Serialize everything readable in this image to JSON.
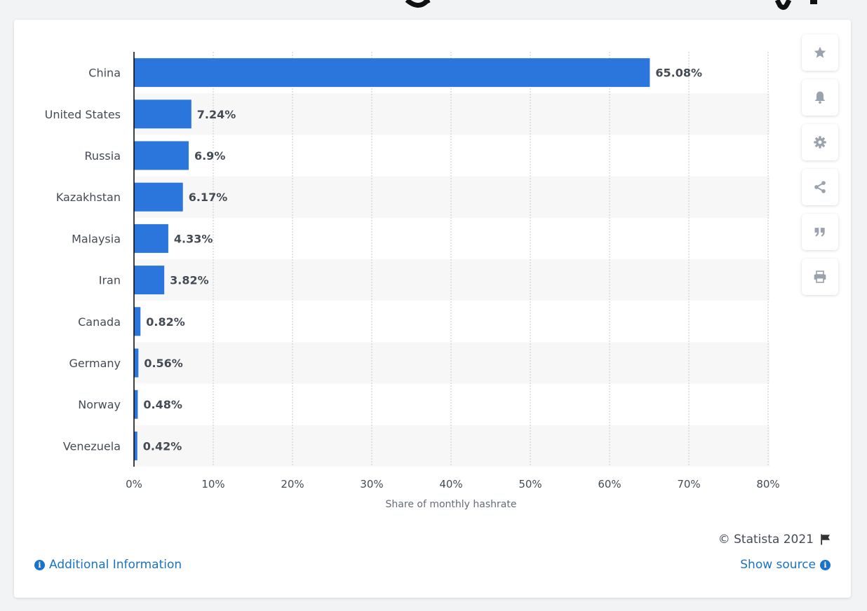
{
  "footer": {
    "copyright": "© Statista 2021",
    "additional_info": "Additional Information",
    "show_source": "Show source"
  },
  "actions": [
    {
      "name": "star-icon"
    },
    {
      "name": "bell-icon"
    },
    {
      "name": "gear-icon"
    },
    {
      "name": "share-icon"
    },
    {
      "name": "quote-icon"
    },
    {
      "name": "print-icon"
    }
  ],
  "colors": {
    "bar": "#2a76dd",
    "stripe": "#f7f7f7",
    "grid": "#c8c8c8",
    "axis": "#000000",
    "label": "#444b54",
    "link": "#1a73c9",
    "icon": "#9aa3ad"
  },
  "chart_data": {
    "type": "bar",
    "orientation": "horizontal",
    "categories": [
      "China",
      "United States",
      "Russia",
      "Kazakhstan",
      "Malaysia",
      "Iran",
      "Canada",
      "Germany",
      "Norway",
      "Venezuela"
    ],
    "values": [
      65.08,
      7.24,
      6.9,
      6.17,
      4.33,
      3.82,
      0.82,
      0.56,
      0.48,
      0.42
    ],
    "value_labels": [
      "65.08%",
      "7.24%",
      "6.9%",
      "6.17%",
      "4.33%",
      "3.82%",
      "0.82%",
      "0.56%",
      "0.48%",
      "0.42%"
    ],
    "xlabel": "Share of monthly hashrate",
    "ylabel": "",
    "xlim": [
      0,
      80
    ],
    "xticks": [
      0,
      10,
      20,
      30,
      40,
      50,
      60,
      70,
      80
    ],
    "xtick_labels": [
      "0%",
      "10%",
      "20%",
      "30%",
      "40%",
      "50%",
      "60%",
      "70%",
      "80%"
    ],
    "grid": true,
    "legend": "none"
  }
}
